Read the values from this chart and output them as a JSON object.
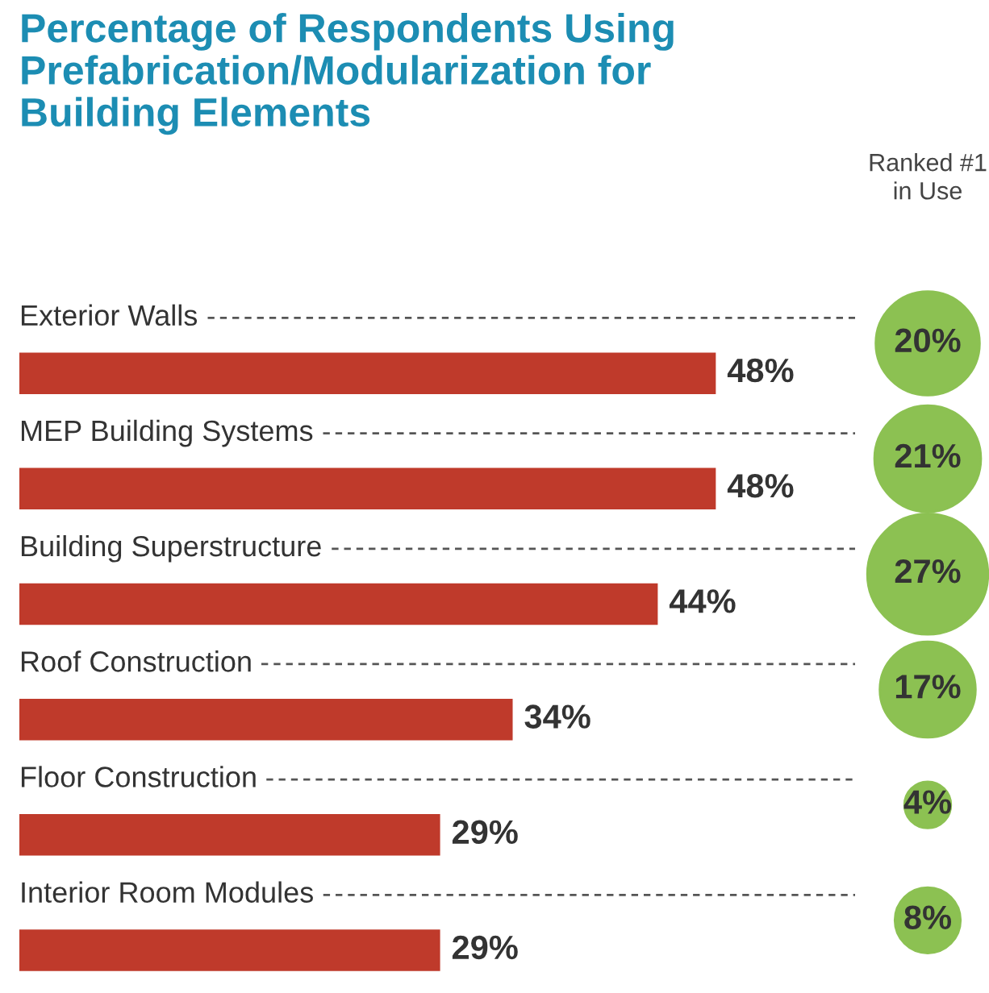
{
  "chart_data": [
    {
      "type": "bar",
      "orientation": "horizontal",
      "title": "Percentage of Respondents Using\nPrefabrication/Modularization for\nBuilding Elements",
      "categories": [
        "Exterior Walls",
        "MEP Building Systems",
        "Building Superstructure",
        "Roof Construction",
        "Floor Construction",
        "Interior Room Modules"
      ],
      "values": [
        48,
        48,
        44,
        34,
        29,
        29
      ],
      "color": "#bf3a2b",
      "value_labels": [
        "48%",
        "48%",
        "44%",
        "34%",
        "29%",
        "29%"
      ],
      "grid": "y"
    },
    {
      "type": "other",
      "title": "Ranked #1\nin Use",
      "color": "#8cc152",
      "values": [
        20,
        21,
        27,
        17,
        4,
        8
      ],
      "value_labels": [
        "20%",
        "21%",
        "27%",
        "17%",
        "4%",
        "8%"
      ]
    }
  ]
}
